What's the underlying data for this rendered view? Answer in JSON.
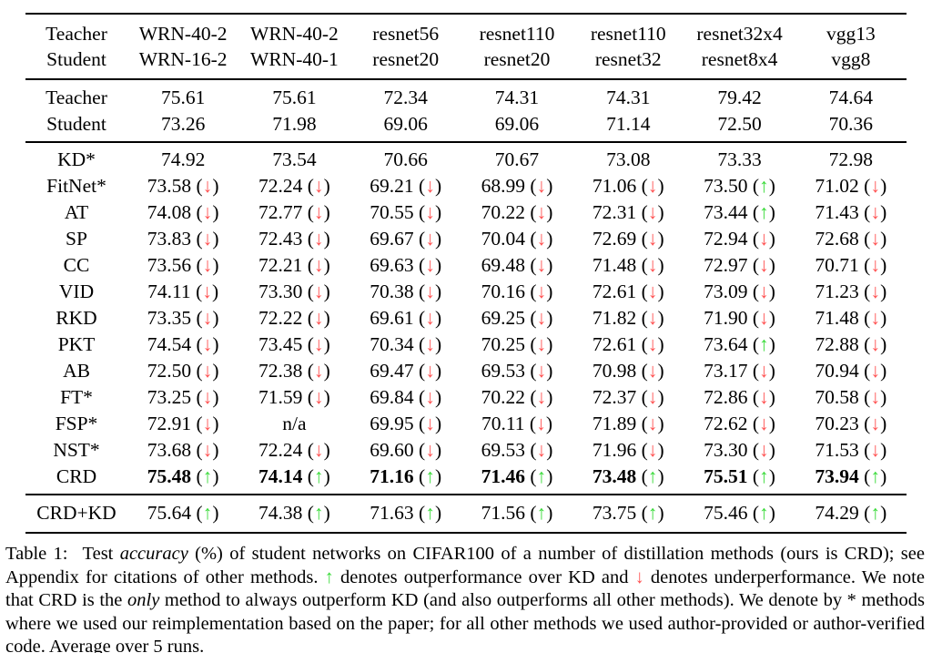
{
  "colors": {
    "arrow_up": "#3bdb3b",
    "arrow_down": "#ff5454",
    "text": "#000000",
    "background": "#ffffff"
  },
  "table": {
    "header": {
      "row1_label": "Teacher",
      "row2_label": "Student",
      "columns": [
        {
          "teacher": "WRN-40-2",
          "student": "WRN-16-2"
        },
        {
          "teacher": "WRN-40-2",
          "student": "WRN-40-1"
        },
        {
          "teacher": "resnet56",
          "student": "resnet20"
        },
        {
          "teacher": "resnet110",
          "student": "resnet20"
        },
        {
          "teacher": "resnet110",
          "student": "resnet32"
        },
        {
          "teacher": "resnet32x4",
          "student": "resnet8x4"
        },
        {
          "teacher": "vgg13",
          "student": "vgg8"
        }
      ]
    },
    "baseline_rows": [
      {
        "label": "Teacher",
        "cells": [
          {
            "value": "75.61"
          },
          {
            "value": "75.61"
          },
          {
            "value": "72.34"
          },
          {
            "value": "74.31"
          },
          {
            "value": "74.31"
          },
          {
            "value": "79.42"
          },
          {
            "value": "74.64"
          }
        ]
      },
      {
        "label": "Student",
        "cells": [
          {
            "value": "73.26"
          },
          {
            "value": "71.98"
          },
          {
            "value": "69.06"
          },
          {
            "value": "69.06"
          },
          {
            "value": "71.14"
          },
          {
            "value": "72.50"
          },
          {
            "value": "70.36"
          }
        ]
      }
    ],
    "method_rows": [
      {
        "label": "KD*",
        "bold": false,
        "cells": [
          {
            "value": "74.92"
          },
          {
            "value": "73.54"
          },
          {
            "value": "70.66"
          },
          {
            "value": "70.67"
          },
          {
            "value": "73.08"
          },
          {
            "value": "73.33"
          },
          {
            "value": "72.98"
          }
        ]
      },
      {
        "label": "FitNet*",
        "bold": false,
        "cells": [
          {
            "value": "73.58",
            "arrow": "down"
          },
          {
            "value": "72.24",
            "arrow": "down"
          },
          {
            "value": "69.21",
            "arrow": "down"
          },
          {
            "value": "68.99",
            "arrow": "down"
          },
          {
            "value": "71.06",
            "arrow": "down"
          },
          {
            "value": "73.50",
            "arrow": "up"
          },
          {
            "value": "71.02",
            "arrow": "down"
          }
        ]
      },
      {
        "label": "AT",
        "bold": false,
        "cells": [
          {
            "value": "74.08",
            "arrow": "down"
          },
          {
            "value": "72.77",
            "arrow": "down"
          },
          {
            "value": "70.55",
            "arrow": "down"
          },
          {
            "value": "70.22",
            "arrow": "down"
          },
          {
            "value": "72.31",
            "arrow": "down"
          },
          {
            "value": "73.44",
            "arrow": "up"
          },
          {
            "value": "71.43",
            "arrow": "down"
          }
        ]
      },
      {
        "label": "SP",
        "bold": false,
        "cells": [
          {
            "value": "73.83",
            "arrow": "down"
          },
          {
            "value": "72.43",
            "arrow": "down"
          },
          {
            "value": "69.67",
            "arrow": "down"
          },
          {
            "value": "70.04",
            "arrow": "down"
          },
          {
            "value": "72.69",
            "arrow": "down"
          },
          {
            "value": "72.94",
            "arrow": "down"
          },
          {
            "value": "72.68",
            "arrow": "down"
          }
        ]
      },
      {
        "label": "CC",
        "bold": false,
        "cells": [
          {
            "value": "73.56",
            "arrow": "down"
          },
          {
            "value": "72.21",
            "arrow": "down"
          },
          {
            "value": "69.63",
            "arrow": "down"
          },
          {
            "value": "69.48",
            "arrow": "down"
          },
          {
            "value": "71.48",
            "arrow": "down"
          },
          {
            "value": "72.97",
            "arrow": "down"
          },
          {
            "value": "70.71",
            "arrow": "down"
          }
        ]
      },
      {
        "label": "VID",
        "bold": false,
        "cells": [
          {
            "value": "74.11",
            "arrow": "down"
          },
          {
            "value": "73.30",
            "arrow": "down"
          },
          {
            "value": "70.38",
            "arrow": "down"
          },
          {
            "value": "70.16",
            "arrow": "down"
          },
          {
            "value": "72.61",
            "arrow": "down"
          },
          {
            "value": "73.09",
            "arrow": "down"
          },
          {
            "value": "71.23",
            "arrow": "down"
          }
        ]
      },
      {
        "label": "RKD",
        "bold": false,
        "cells": [
          {
            "value": "73.35",
            "arrow": "down"
          },
          {
            "value": "72.22",
            "arrow": "down"
          },
          {
            "value": "69.61",
            "arrow": "down"
          },
          {
            "value": "69.25",
            "arrow": "down"
          },
          {
            "value": "71.82",
            "arrow": "down"
          },
          {
            "value": "71.90",
            "arrow": "down"
          },
          {
            "value": "71.48",
            "arrow": "down"
          }
        ]
      },
      {
        "label": "PKT",
        "bold": false,
        "cells": [
          {
            "value": "74.54",
            "arrow": "down"
          },
          {
            "value": "73.45",
            "arrow": "down"
          },
          {
            "value": "70.34",
            "arrow": "down"
          },
          {
            "value": "70.25",
            "arrow": "down"
          },
          {
            "value": "72.61",
            "arrow": "down"
          },
          {
            "value": "73.64",
            "arrow": "up"
          },
          {
            "value": "72.88",
            "arrow": "down"
          }
        ]
      },
      {
        "label": "AB",
        "bold": false,
        "cells": [
          {
            "value": "72.50",
            "arrow": "down"
          },
          {
            "value": "72.38",
            "arrow": "down"
          },
          {
            "value": "69.47",
            "arrow": "down"
          },
          {
            "value": "69.53",
            "arrow": "down"
          },
          {
            "value": "70.98",
            "arrow": "down"
          },
          {
            "value": "73.17",
            "arrow": "down"
          },
          {
            "value": "70.94",
            "arrow": "down"
          }
        ]
      },
      {
        "label": "FT*",
        "bold": false,
        "cells": [
          {
            "value": "73.25",
            "arrow": "down"
          },
          {
            "value": "71.59",
            "arrow": "down"
          },
          {
            "value": "69.84",
            "arrow": "down"
          },
          {
            "value": "70.22",
            "arrow": "down"
          },
          {
            "value": "72.37",
            "arrow": "down"
          },
          {
            "value": "72.86",
            "arrow": "down"
          },
          {
            "value": "70.58",
            "arrow": "down"
          }
        ]
      },
      {
        "label": "FSP*",
        "bold": false,
        "cells": [
          {
            "value": "72.91",
            "arrow": "down"
          },
          {
            "value": "n/a"
          },
          {
            "value": "69.95",
            "arrow": "down"
          },
          {
            "value": "70.11",
            "arrow": "down"
          },
          {
            "value": "71.89",
            "arrow": "down"
          },
          {
            "value": "72.62",
            "arrow": "down"
          },
          {
            "value": "70.23",
            "arrow": "down"
          }
        ]
      },
      {
        "label": "NST*",
        "bold": false,
        "cells": [
          {
            "value": "73.68",
            "arrow": "down"
          },
          {
            "value": "72.24",
            "arrow": "down"
          },
          {
            "value": "69.60",
            "arrow": "down"
          },
          {
            "value": "69.53",
            "arrow": "down"
          },
          {
            "value": "71.96",
            "arrow": "down"
          },
          {
            "value": "73.30",
            "arrow": "down"
          },
          {
            "value": "71.53",
            "arrow": "down"
          }
        ]
      },
      {
        "label": "CRD",
        "bold": true,
        "cells": [
          {
            "value": "75.48",
            "arrow": "up"
          },
          {
            "value": "74.14",
            "arrow": "up"
          },
          {
            "value": "71.16",
            "arrow": "up"
          },
          {
            "value": "71.46",
            "arrow": "up"
          },
          {
            "value": "73.48",
            "arrow": "up"
          },
          {
            "value": "75.51",
            "arrow": "up"
          },
          {
            "value": "73.94",
            "arrow": "up"
          }
        ]
      }
    ],
    "footer_rows": [
      {
        "label": "CRD+KD",
        "bold": false,
        "cells": [
          {
            "value": "75.64",
            "arrow": "up"
          },
          {
            "value": "74.38",
            "arrow": "up"
          },
          {
            "value": "71.63",
            "arrow": "up"
          },
          {
            "value": "71.56",
            "arrow": "up"
          },
          {
            "value": "73.75",
            "arrow": "up"
          },
          {
            "value": "75.46",
            "arrow": "up"
          },
          {
            "value": "74.29",
            "arrow": "up"
          }
        ]
      }
    ]
  },
  "caption": {
    "segments": [
      {
        "text": "Table 1:",
        "style": "label"
      },
      {
        "text": "Test ",
        "style": "normal"
      },
      {
        "text": "accuracy",
        "style": "italic"
      },
      {
        "text": " (%) of student networks on CIFAR100 of a number of distillation methods (ours is CRD); see Appendix for citations of other methods. ",
        "style": "normal"
      },
      {
        "text": "↑",
        "style": "arrow-up"
      },
      {
        "text": " denotes outperformance over KD and ",
        "style": "normal"
      },
      {
        "text": "↓",
        "style": "arrow-down"
      },
      {
        "text": " denotes underperformance. We note that CRD is the ",
        "style": "normal"
      },
      {
        "text": "only",
        "style": "italic"
      },
      {
        "text": " method to always outperform KD (and also outperforms all other methods). We denote by * methods where we used our reimplementation based on the paper; for all other methods we used author-provided or author-verified code. Average over 5 runs.",
        "style": "normal"
      }
    ]
  }
}
